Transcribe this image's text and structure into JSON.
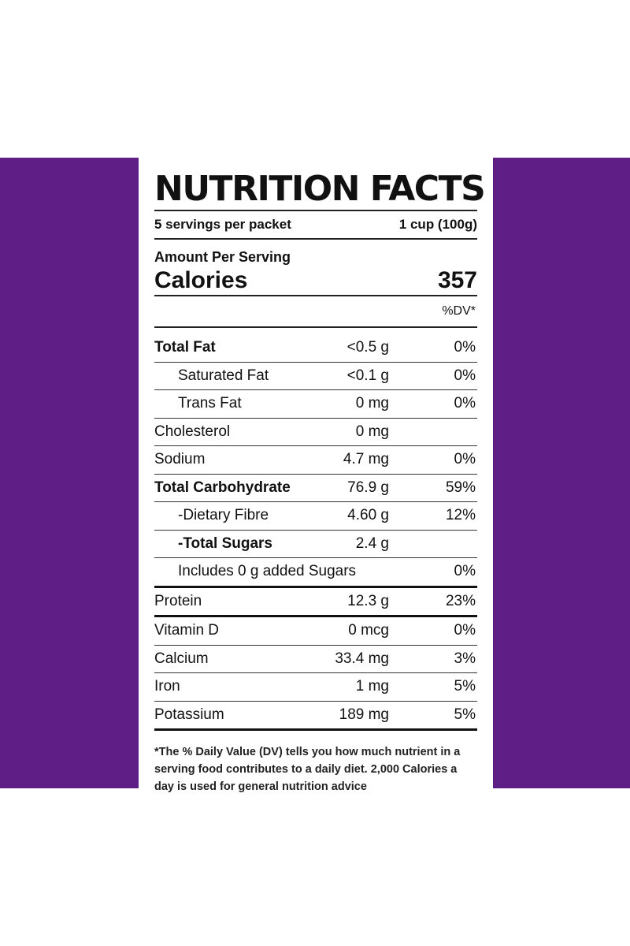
{
  "label": {
    "title": "NUTRITION FACTS",
    "servings_per_packet": "5 servings per packet",
    "serving_size": "1 cup (100g)",
    "amount_per_serving": "Amount Per Serving",
    "calories_label": "Calories",
    "calories_value": "357",
    "dv_header": "%DV*",
    "rows": [
      {
        "name": "Total Fat",
        "amount": "<0.5 g",
        "dv": "0%"
      },
      {
        "name": "Saturated Fat",
        "amount": "<0.1 g",
        "dv": "0%"
      },
      {
        "name": "Trans Fat",
        "amount": "0 mg",
        "dv": "0%"
      },
      {
        "name": "Cholesterol",
        "amount": "0 mg",
        "dv": ""
      },
      {
        "name": "Sodium",
        "amount": "4.7 mg",
        "dv": "0%"
      },
      {
        "name": "Total Carbohydrate",
        "amount": "76.9 g",
        "dv": "59%"
      },
      {
        "name": "-Dietary Fibre",
        "amount": "4.60 g",
        "dv": "12%"
      },
      {
        "name": "-Total Sugars",
        "amount": "2.4 g",
        "dv": ""
      },
      {
        "name": "Includes 0 g added Sugars",
        "amount": "",
        "dv": "0%"
      },
      {
        "name": "Protein",
        "amount": "12.3 g",
        "dv": "23%"
      },
      {
        "name": "Vitamin D",
        "amount": "0 mcg",
        "dv": "0%"
      },
      {
        "name": "Calcium",
        "amount": "33.4 mg",
        "dv": "3%"
      },
      {
        "name": "Iron",
        "amount": "1 mg",
        "dv": "5%"
      },
      {
        "name": "Potassium",
        "amount": "189 mg",
        "dv": "5%"
      }
    ],
    "footnote": "*The % Daily Value (DV) tells you how much nutrient in a serving food contributes to a daily diet. 2,000 Calories a day is used for general nutrition advice"
  },
  "colors": {
    "background_band": "#5f1d86",
    "panel": "#ffffff",
    "text": "#111111"
  }
}
